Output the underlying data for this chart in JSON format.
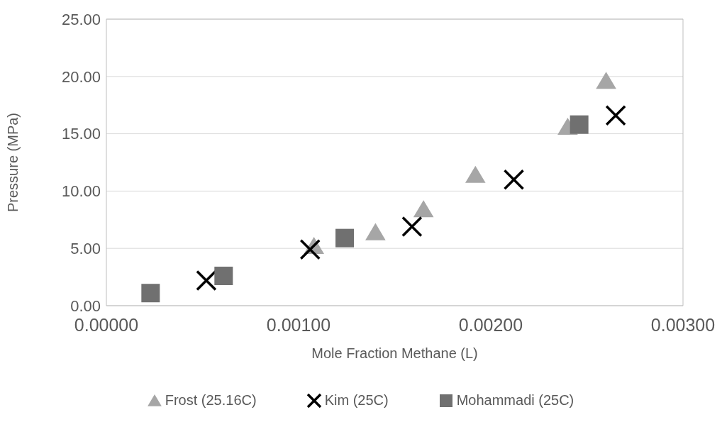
{
  "chart_data": {
    "type": "scatter",
    "xlabel": "Mole Fraction Methane (L)",
    "ylabel": "Pressure (MPa)",
    "xlim": [
      0,
      0.003
    ],
    "xticks": [
      {
        "value": 0,
        "label": "0.00000"
      },
      {
        "value": 0.001,
        "label": "0.00100"
      },
      {
        "value": 0.002,
        "label": "0.00200"
      },
      {
        "value": 0.003,
        "label": "0.00300"
      }
    ],
    "ylim": [
      0,
      25
    ],
    "yticks": [
      {
        "value": 0,
        "label": "0.00"
      },
      {
        "value": 5,
        "label": "5.00"
      },
      {
        "value": 10,
        "label": "10.00"
      },
      {
        "value": 15,
        "label": "15.00"
      },
      {
        "value": 20,
        "label": "20.00"
      },
      {
        "value": 25,
        "label": "25.00"
      }
    ],
    "grid": "y",
    "legend": "bottom",
    "series": [
      {
        "name": "Frost (25.16C)",
        "color": "#a6a6a6",
        "marker": "triangle",
        "x": [
          0.00108,
          0.0014,
          0.00165,
          0.00192,
          0.0024,
          0.0026
        ],
        "values": [
          5.2,
          6.4,
          8.4,
          11.4,
          15.6,
          19.6
        ]
      },
      {
        "name": "Kim (25C)",
        "color": "#000000",
        "marker": "cross",
        "x": [
          0.00052,
          0.00106,
          0.00159,
          0.00212,
          0.00265
        ],
        "values": [
          2.2,
          4.9,
          6.9,
          11.0,
          16.6
        ]
      },
      {
        "name": "Mohammadi (25C)",
        "color": "#707070",
        "marker": "square",
        "x": [
          0.00023,
          0.00061,
          0.00124,
          0.00246
        ],
        "values": [
          1.1,
          2.6,
          5.9,
          15.8
        ]
      }
    ]
  }
}
